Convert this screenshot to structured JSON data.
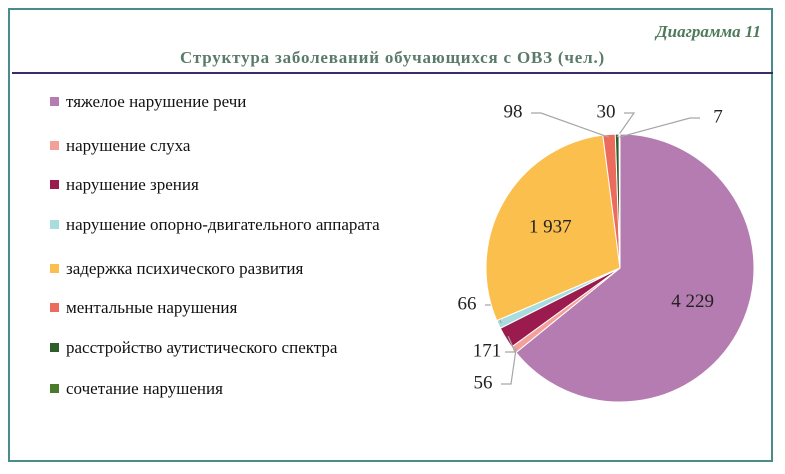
{
  "chart_data": {
    "type": "pie",
    "caption": "Диаграмма 11",
    "title": "Структура заболеваний обучающихся с ОВЗ (чел.)",
    "categories": [
      "тяжелое нарушение речи",
      "нарушение слуха",
      "нарушение зрения",
      "нарушение опорно-двигательного аппарата",
      "задержка психического развития",
      "ментальные нарушения",
      "расстройство аутистического спектра",
      "сочетание нарушения"
    ],
    "values": [
      4229,
      56,
      171,
      66,
      1937,
      98,
      30,
      7
    ],
    "value_labels": [
      "4 229",
      "56",
      "171",
      "66",
      "1 937",
      "98",
      "30",
      "7"
    ],
    "colors": [
      "#b47cb0",
      "#f4a09a",
      "#9b1b4e",
      "#a8dde0",
      "#fbbf4e",
      "#ec6b5c",
      "#2e5f2a",
      "#4a7a2a"
    ],
    "legend": "left"
  }
}
